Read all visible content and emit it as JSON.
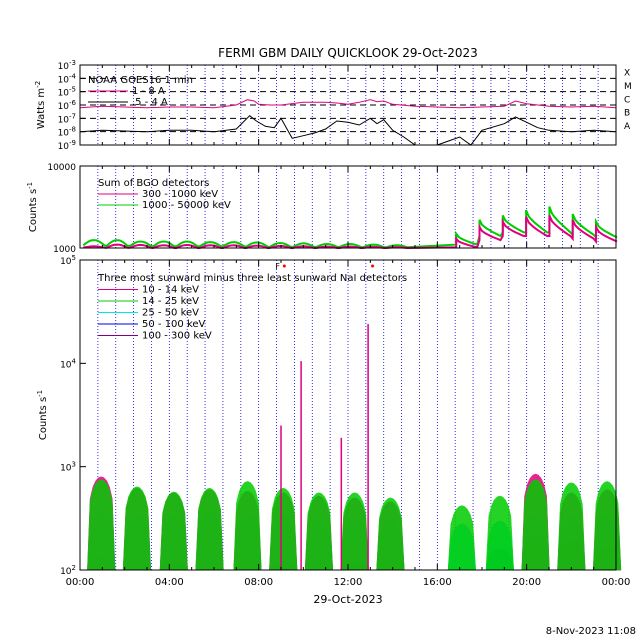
{
  "title": "FERMI GBM DAILY QUICKLOOK  29-Oct-2023",
  "footer_date": "8-Nov-2023 11:08",
  "xlabel": "29-Oct-2023",
  "x_ticks": [
    "00:00",
    "04:00",
    "08:00",
    "12:00",
    "16:00",
    "20:00",
    "00:00"
  ],
  "colors": {
    "magenta": "#e0007f",
    "green": "#00cc00",
    "cyan": "#00e5e5",
    "blue": "#0000ee",
    "purple": "#800080",
    "black": "#000000",
    "dotted": "#0000ff",
    "flag": "#ff0000"
  },
  "chart_data": [
    {
      "type": "line",
      "title": "GOES",
      "ylabel": "Watts m",
      "ylabel_exp": "-2",
      "log_y": true,
      "ylim_exp": [
        -9,
        -3
      ],
      "y_ticks": [
        "10",
        "10",
        "10",
        "10",
        "10",
        "10",
        "10"
      ],
      "y_tick_exps": [
        "-3",
        "-4",
        "-5",
        "-6",
        "-7",
        "-8",
        "-9"
      ],
      "class_labels": [
        "X",
        "M",
        "C",
        "B",
        "A"
      ],
      "legend": {
        "header": "NOAA GOES16 1 min",
        "items": [
          {
            "label": "1 - 8 A",
            "color": "magenta"
          },
          {
            "label": ".5 - 4 A",
            "color": "black"
          }
        ]
      },
      "series": [
        {
          "name": "1 - 8 A",
          "color": "magenta",
          "x_hours": [
            0,
            1,
            2,
            3,
            4,
            5,
            6,
            7,
            7.5,
            7.8,
            8,
            8.5,
            9,
            10,
            11,
            11.5,
            12,
            12.5,
            13,
            13.3,
            13.6,
            14,
            15,
            16,
            17,
            18,
            19,
            19.5,
            20,
            21,
            22,
            23,
            24
          ],
          "log_values": [
            -6.2,
            -6.1,
            -6.15,
            -6.2,
            -6.15,
            -6.15,
            -6.2,
            -6.0,
            -5.6,
            -5.7,
            -5.95,
            -6.0,
            -6.0,
            -5.8,
            -5.8,
            -5.85,
            -5.95,
            -5.8,
            -5.6,
            -5.75,
            -5.7,
            -5.95,
            -6.1,
            -6.15,
            -6.2,
            -6.15,
            -6.1,
            -5.7,
            -5.9,
            -6.1,
            -6.15,
            -6.1,
            -6.2
          ]
        },
        {
          "name": ".5 - 4 A",
          "color": "black",
          "x_hours": [
            0,
            1,
            2,
            3,
            4,
            5,
            6,
            7,
            7.6,
            7.9,
            8.3,
            8.7,
            9,
            9.5,
            10,
            10.5,
            11,
            11.5,
            12,
            12.5,
            13,
            13.3,
            13.6,
            14,
            14.5,
            15,
            16,
            16.5,
            17,
            17.5,
            18,
            19,
            19.5,
            20,
            20.5,
            21,
            22,
            23,
            24
          ],
          "log_values": [
            -8.0,
            -7.9,
            -7.95,
            -8.0,
            -7.9,
            -7.9,
            -8.0,
            -7.8,
            -6.8,
            -7.2,
            -7.6,
            -7.7,
            -7.0,
            -8.5,
            -8.3,
            -8.1,
            -7.8,
            -7.2,
            -7.3,
            -7.5,
            -7.0,
            -7.4,
            -7.1,
            -7.9,
            -8.4,
            -9.0,
            -9.0,
            -8.7,
            -8.4,
            -9.0,
            -7.9,
            -7.4,
            -6.9,
            -7.3,
            -7.7,
            -7.9,
            -8.0,
            -7.9,
            -8.0
          ]
        }
      ]
    },
    {
      "type": "line",
      "title": "BGO",
      "ylabel": "Counts s",
      "ylabel_exp": "-1",
      "log_y": true,
      "ylim": [
        1000,
        10000
      ],
      "y_ticks": [
        "10000",
        "1000"
      ],
      "legend": {
        "header": "Sum of BGO detectors",
        "items": [
          {
            "label": "300 - 1000 keV",
            "color": "magenta"
          },
          {
            "label": "1000 - 50000 keV",
            "color": "green"
          }
        ]
      },
      "series": [
        {
          "name": "300 - 1000 keV",
          "color": "magenta",
          "orbit_peaks": [
            1050,
            1100,
            1090,
            1080,
            1090,
            1080,
            1080,
            1070,
            1060,
            1050,
            1040,
            1040,
            1030,
            1020,
            1020,
            1020,
            1300,
            1800,
            2100,
            2400,
            2500,
            2200,
            1800
          ],
          "orbit_floor": [
            1010,
            1005,
            1005,
            1000,
            1000,
            1000,
            1000,
            1000,
            1000,
            1000,
            1000,
            1000,
            1000,
            1000,
            1000,
            1000,
            1020,
            1250,
            1400,
            1400,
            1400,
            1300,
            1200
          ]
        },
        {
          "name": "1000 - 50000 keV",
          "color": "green",
          "orbit_peaks": [
            1250,
            1250,
            1200,
            1200,
            1200,
            1180,
            1180,
            1170,
            1150,
            1140,
            1120,
            1120,
            1100,
            1080,
            1080,
            1080,
            1500,
            2200,
            2500,
            2900,
            3200,
            2600,
            2100
          ],
          "orbit_floor": [
            1080,
            1060,
            1060,
            1050,
            1050,
            1050,
            1050,
            1040,
            1030,
            1030,
            1030,
            1030,
            1020,
            1020,
            1020,
            1020,
            1100,
            1400,
            1550,
            1550,
            1550,
            1450,
            1350
          ]
        }
      ]
    },
    {
      "type": "area",
      "title": "NaI",
      "ylabel": "Counts s",
      "ylabel_exp": "-1",
      "log_y": true,
      "ylim": [
        100,
        100000
      ],
      "y_ticks": [
        "10",
        "10",
        "10",
        "10"
      ],
      "y_tick_exps": [
        "5",
        "4",
        "3",
        "2"
      ],
      "legend": {
        "header": "Three most sunward minus three least sunward NaI detectors",
        "items": [
          {
            "label": "10 - 14 keV",
            "color": "magenta"
          },
          {
            "label": "14 - 25 keV",
            "color": "green"
          },
          {
            "label": "25 - 50 keV",
            "color": "cyan"
          },
          {
            "label": "50 - 100 keV",
            "color": "blue"
          },
          {
            "label": "100 - 300 keV",
            "color": "purple"
          }
        ]
      },
      "flags": [
        {
          "x_hours": 8.85,
          "label": "F"
        },
        {
          "x_hours": 9.15,
          "label": ""
        },
        {
          "x_hours": 13.1,
          "label": ""
        }
      ],
      "orbit_centers_hours": [
        0.95,
        2.55,
        4.2,
        5.8,
        7.5,
        9.1,
        10.7,
        12.3,
        13.9,
        15.5,
        17.1,
        18.8,
        20.4,
        22.0,
        23.6
      ],
      "peaks": [
        {
          "x_hours": 9.0,
          "value": 2500
        },
        {
          "x_hours": 9.9,
          "value": 10500
        },
        {
          "x_hours": 11.7,
          "value": 1900
        },
        {
          "x_hours": 12.9,
          "value": 24000
        }
      ],
      "series": [
        {
          "name": "10 - 14 keV",
          "color": "magenta",
          "orbit_levels": [
            800,
            620,
            560,
            600,
            580,
            560,
            520,
            500,
            460,
            0,
            0,
            0,
            850,
            560,
            600
          ]
        },
        {
          "name": "14 - 25 keV",
          "color": "green",
          "orbit_levels": [
            750,
            640,
            570,
            620,
            720,
            620,
            560,
            560,
            500,
            0,
            420,
            520,
            750,
            700,
            720
          ]
        },
        {
          "name": "25 - 50 keV",
          "color": "cyan",
          "orbit_levels": [
            360,
            330,
            340,
            360,
            350,
            330,
            300,
            320,
            300,
            0,
            280,
            300,
            350,
            340,
            350
          ]
        },
        {
          "name": "50 - 100 keV",
          "color": "blue",
          "orbit_levels": [
            130,
            120,
            120,
            125,
            125,
            120,
            120,
            118,
            118,
            0,
            0,
            0,
            130,
            125,
            125
          ]
        },
        {
          "name": "100 - 300 keV",
          "color": "purple",
          "orbit_levels": [
            0,
            0,
            0,
            0,
            0,
            0,
            0,
            0,
            125,
            0,
            0,
            160,
            210,
            200,
            170
          ]
        }
      ]
    }
  ]
}
